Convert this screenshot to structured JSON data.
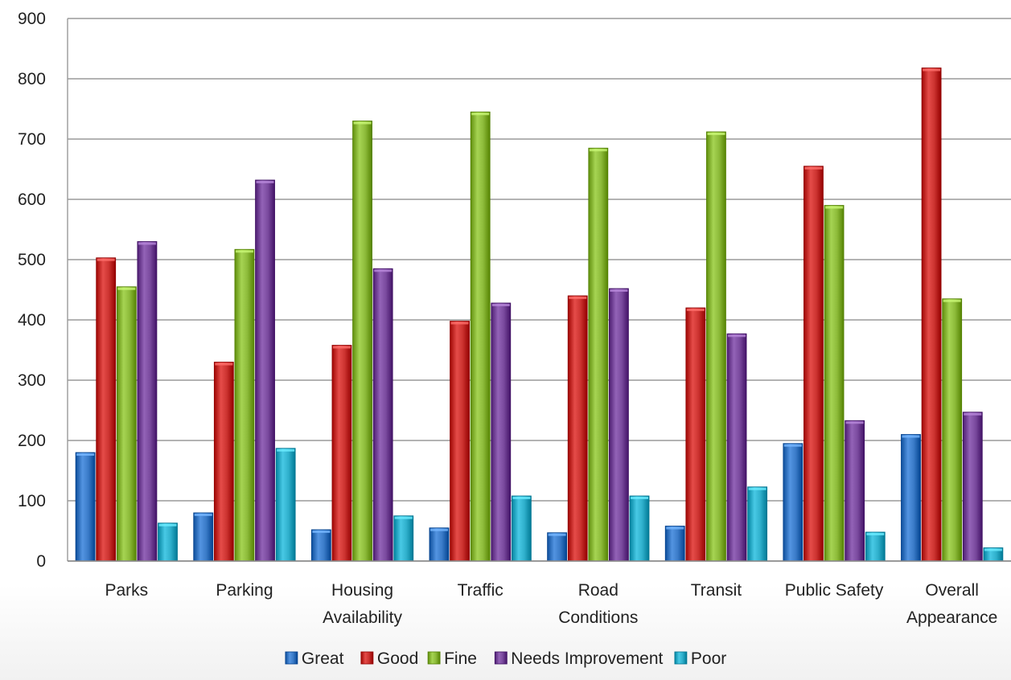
{
  "chart_data": {
    "type": "bar",
    "title": "",
    "xlabel": "",
    "ylabel": "",
    "categories": [
      [
        "Parks"
      ],
      [
        "Parking"
      ],
      [
        "Housing",
        "Availability"
      ],
      [
        "Traffic"
      ],
      [
        "Road",
        "Conditions"
      ],
      [
        "Transit"
      ],
      [
        "Public Safety"
      ],
      [
        "Overall",
        "Appearance"
      ]
    ],
    "series": [
      {
        "name": "Great",
        "color": "#3a7bc8",
        "values": [
          180,
          80,
          52,
          55,
          47,
          58,
          195,
          210
        ]
      },
      {
        "name": "Good",
        "color": "#cc3330",
        "values": [
          503,
          330,
          358,
          398,
          440,
          420,
          655,
          818
        ]
      },
      {
        "name": "Fine",
        "color": "#8dbb3a",
        "values": [
          455,
          517,
          730,
          745,
          685,
          712,
          590,
          435
        ]
      },
      {
        "name": "Needs Improvement",
        "color": "#7a4a9e",
        "values": [
          530,
          632,
          485,
          428,
          452,
          377,
          233,
          247
        ]
      },
      {
        "name": "Poor",
        "color": "#2fb0cc",
        "values": [
          63,
          187,
          75,
          108,
          108,
          123,
          48,
          22
        ]
      }
    ],
    "ylim": [
      0,
      900
    ],
    "yticks": [
      0,
      100,
      200,
      300,
      400,
      500,
      600,
      700,
      800,
      900
    ],
    "grid": true,
    "legend_position": "bottom"
  }
}
